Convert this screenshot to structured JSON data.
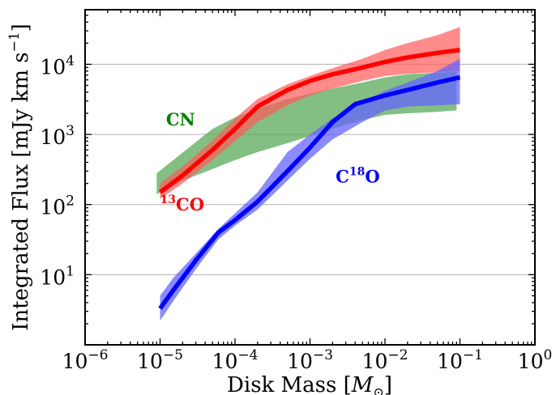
{
  "chart_data": {
    "type": "area",
    "xlabel": "Disk Mass [",
    "xlabel_unit": "M",
    "xlabel_unit_sub": "⊙",
    "xlabel_end": "]",
    "ylabel": "Integrated Flux [mJy km s",
    "ylabel_exp": "−1",
    "ylabel_end": "]",
    "x_scale": "log",
    "y_scale": "log",
    "xlim": [
      1e-06,
      1
    ],
    "ylim": [
      1,
      60000
    ],
    "grid": "horizontal at major y ticks",
    "x_ticks": [
      {
        "value": 1e-06,
        "base": "10",
        "exp": "−6"
      },
      {
        "value": 1e-05,
        "base": "10",
        "exp": "−5"
      },
      {
        "value": 0.0001,
        "base": "10",
        "exp": "−4"
      },
      {
        "value": 0.001,
        "base": "10",
        "exp": "−3"
      },
      {
        "value": 0.01,
        "base": "10",
        "exp": "−2"
      },
      {
        "value": 0.1,
        "base": "10",
        "exp": "−1"
      },
      {
        "value": 1,
        "base": "10",
        "exp": "0"
      }
    ],
    "y_ticks": [
      {
        "value": 10,
        "base": "10",
        "exp": "1"
      },
      {
        "value": 100,
        "base": "10",
        "exp": "2"
      },
      {
        "value": 1000,
        "base": "10",
        "exp": "3"
      },
      {
        "value": 10000,
        "base": "10",
        "exp": "4"
      }
    ],
    "series": [
      {
        "name": "CN",
        "label_main": "CN",
        "label_sup": "",
        "label_tail": "",
        "color": "#008000",
        "band_color": "#5aaa5a",
        "band_opacity": 0.75,
        "has_line": false,
        "label_at": [
          1.2e-05,
          1350
        ],
        "band": {
          "x": [
            9e-06,
            2e-05,
            5e-05,
            0.0001,
            0.0002,
            0.0005,
            0.001,
            0.002,
            0.005,
            0.01,
            0.02,
            0.05,
            0.09
          ],
          "upper": [
            280,
            550,
            1200,
            1750,
            2300,
            3200,
            3800,
            4500,
            5500,
            6500,
            7200,
            7600,
            7800
          ],
          "lower": [
            140,
            220,
            320,
            430,
            560,
            750,
            950,
            1200,
            1600,
            1900,
            2000,
            2100,
            2200
          ]
        }
      },
      {
        "name": "13CO",
        "label_main": "",
        "label_sup": "13",
        "label_tail": "CO",
        "color": "#ff0000",
        "band_color": "#ff5a5a",
        "band_opacity": 0.7,
        "has_line": true,
        "label_at": [
          1e-05,
          82
        ],
        "line": {
          "x": [
            1e-05,
            2e-05,
            5e-05,
            0.0001,
            0.0002,
            0.0005,
            0.001,
            0.002,
            0.005,
            0.01,
            0.02,
            0.05,
            0.1
          ],
          "y": [
            150,
            260,
            600,
            1200,
            2500,
            4300,
            5800,
            7200,
            9000,
            10800,
            12500,
            14500,
            16000
          ]
        },
        "band": {
          "x": [
            1e-05,
            2e-05,
            5e-05,
            0.0001,
            0.0002,
            0.0005,
            0.001,
            0.002,
            0.005,
            0.01,
            0.02,
            0.05,
            0.1
          ],
          "upper": [
            200,
            350,
            820,
            1700,
            3200,
            5200,
            6800,
            8800,
            12000,
            16000,
            20000,
            26000,
            34000
          ],
          "lower": [
            120,
            200,
            430,
            800,
            1500,
            2600,
            3600,
            4500,
            5800,
            6800,
            7300,
            7700,
            8000
          ]
        }
      },
      {
        "name": "C18O",
        "label_main": "C",
        "label_sup": "18",
        "label_tail": "O",
        "color": "#0000ff",
        "band_color": "#6464ff",
        "band_opacity": 0.75,
        "has_line": true,
        "label_at": [
          0.0022,
          205
        ],
        "line": {
          "x": [
            1e-05,
            1.5e-05,
            3e-05,
            6e-05,
            0.0001,
            0.0002,
            0.0005,
            0.001,
            0.002,
            0.004,
            0.01,
            0.02,
            0.05,
            0.1
          ],
          "y": [
            3.3,
            6,
            16,
            40,
            60,
            110,
            300,
            650,
            1500,
            2700,
            3600,
            4300,
            5500,
            6500
          ]
        },
        "band": {
          "x": [
            1e-05,
            1.5e-05,
            3e-05,
            6e-05,
            0.0001,
            0.0002,
            0.0005,
            0.001,
            0.002,
            0.005,
            0.01,
            0.02,
            0.05,
            0.1
          ],
          "upper": [
            5,
            9,
            20,
            45,
            75,
            150,
            560,
            1000,
            1700,
            2900,
            4200,
            5500,
            8000,
            12000
          ],
          "lower": [
            2.2,
            4.2,
            12,
            32,
            50,
            85,
            220,
            450,
            850,
            1500,
            2200,
            2500,
            2600,
            2700
          ]
        }
      }
    ]
  }
}
